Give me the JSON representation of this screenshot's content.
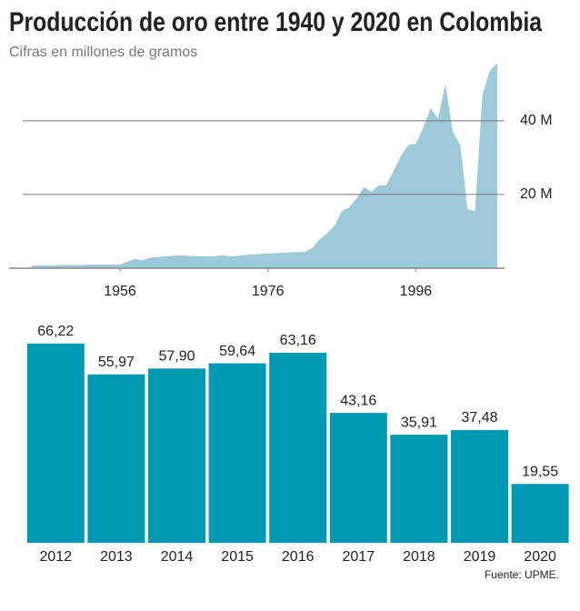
{
  "title": "Producción de oro entre 1940 y 2020 en Colombia",
  "subtitle": "Cifras en millones de gramos",
  "source": "Fuente: UPME.",
  "chart_data": [
    {
      "type": "area",
      "color": "#9dcad8",
      "x": [
        1944,
        1945,
        1946,
        1947,
        1948,
        1949,
        1950,
        1951,
        1952,
        1953,
        1954,
        1955,
        1956,
        1957,
        1958,
        1959,
        1960,
        1961,
        1962,
        1963,
        1964,
        1965,
        1966,
        1967,
        1968,
        1969,
        1970,
        1971,
        1972,
        1973,
        1974,
        1975,
        1976,
        1977,
        1978,
        1979,
        1980,
        1981,
        1982,
        1983,
        1984,
        1985,
        1986,
        1987,
        1988,
        1989,
        1990,
        1991,
        1992,
        1993,
        1994,
        1995,
        1996,
        1997,
        1998,
        1999,
        2000,
        2001,
        2002,
        2003,
        2004,
        2005,
        2006,
        2007
      ],
      "values": [
        0.7,
        0.8,
        0.8,
        0.8,
        0.9,
        0.9,
        0.9,
        0.9,
        1.0,
        1.0,
        1.0,
        1.0,
        1.0,
        1.8,
        2.5,
        2.2,
        2.8,
        3.0,
        3.2,
        3.4,
        3.5,
        3.4,
        3.3,
        3.2,
        3.2,
        3.3,
        3.5,
        3.2,
        3.4,
        3.6,
        3.8,
        3.9,
        4.0,
        4.1,
        4.2,
        4.3,
        4.4,
        4.4,
        5.5,
        7.8,
        9.5,
        11.5,
        15.5,
        16.5,
        19,
        22,
        20.8,
        22.5,
        22.5,
        26.5,
        30.5,
        33.5,
        33.8,
        38,
        43.5,
        40.5,
        50,
        37,
        33.5,
        16,
        15.5,
        47,
        53.5,
        55.6
      ],
      "xlim": [
        1941,
        2008
      ],
      "xticks": [
        1956,
        1976,
        1996
      ],
      "ylim": [
        0,
        56
      ],
      "yticks": [
        {
          "value": 20,
          "label": "20 M"
        },
        {
          "value": 40,
          "label": "40 M"
        }
      ],
      "grid": true
    },
    {
      "type": "bar",
      "color": "#0099b4",
      "categories": [
        "2012",
        "2013",
        "2014",
        "2015",
        "2016",
        "2017",
        "2018",
        "2019",
        "2020"
      ],
      "values": [
        66.22,
        55.97,
        57.9,
        59.64,
        63.16,
        43.16,
        35.91,
        37.48,
        19.55
      ],
      "value_labels": [
        "66,22",
        "55,97",
        "57,90",
        "59,64",
        "63,16",
        "43,16",
        "35,91",
        "37,48",
        "19,55"
      ]
    }
  ]
}
